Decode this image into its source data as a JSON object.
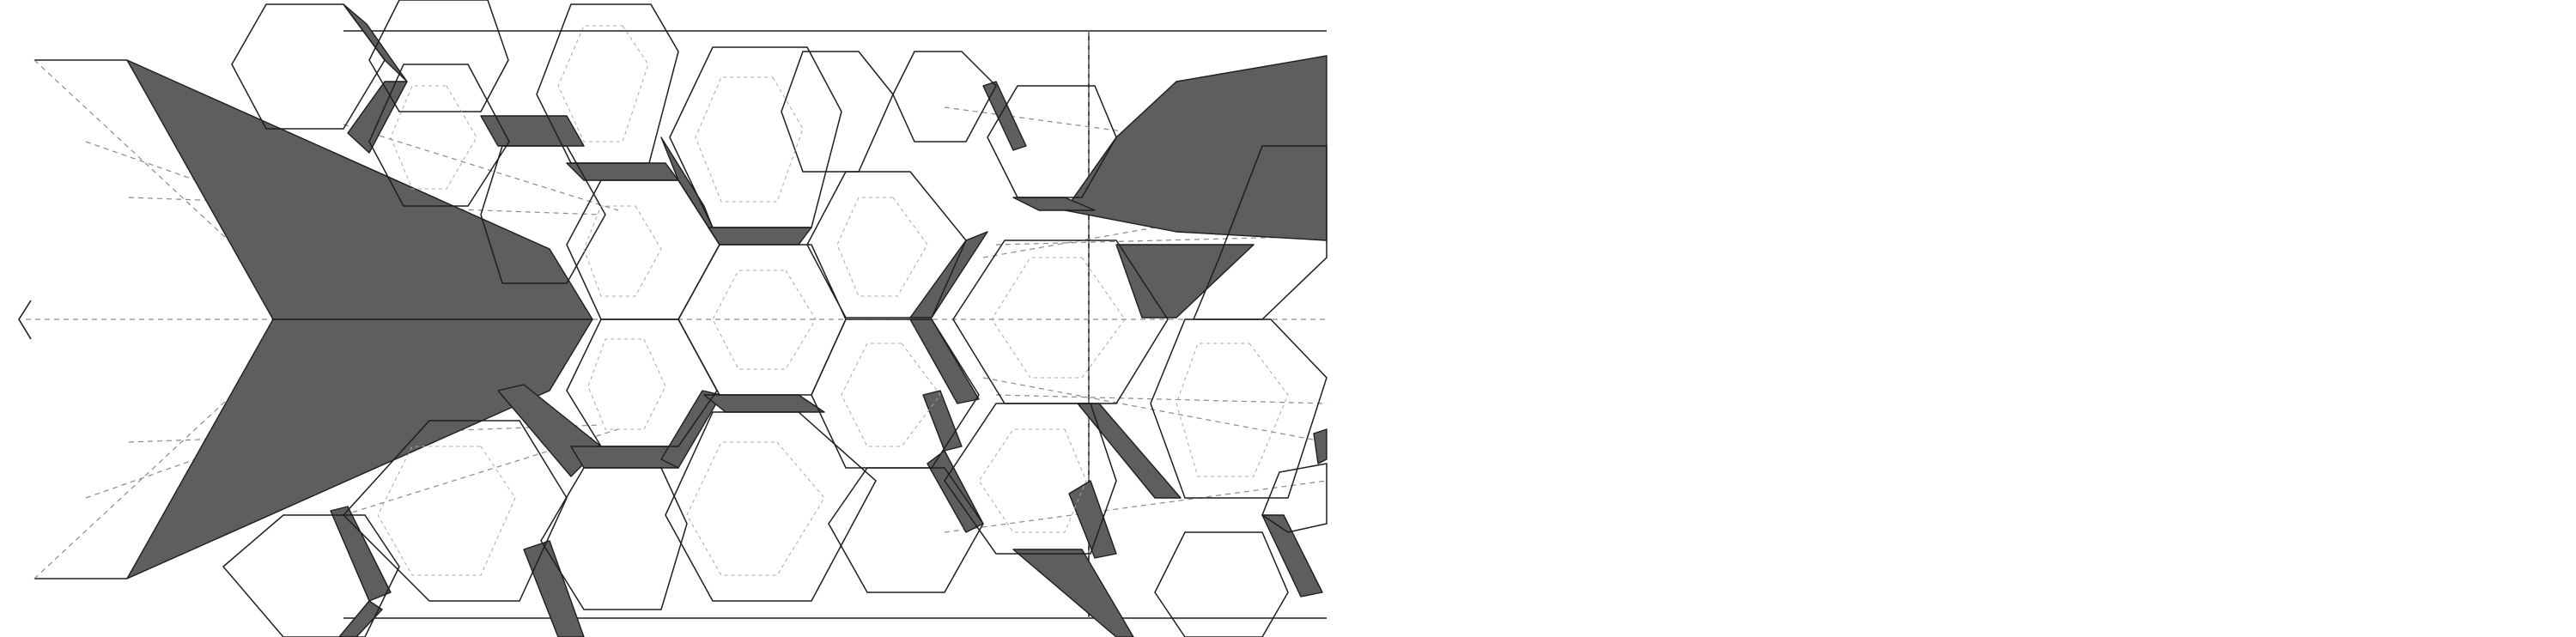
{
  "colors": {
    "background": "#ffffff",
    "fill_dark": "#5e5e5e",
    "line_solid": "#1e1e1e",
    "line_dashed": "#8a8a8a",
    "line_faint": "#c8c8c8"
  },
  "diagram": {
    "kind": "hexagon-tessellation-fold-pattern",
    "text_labels": []
  }
}
